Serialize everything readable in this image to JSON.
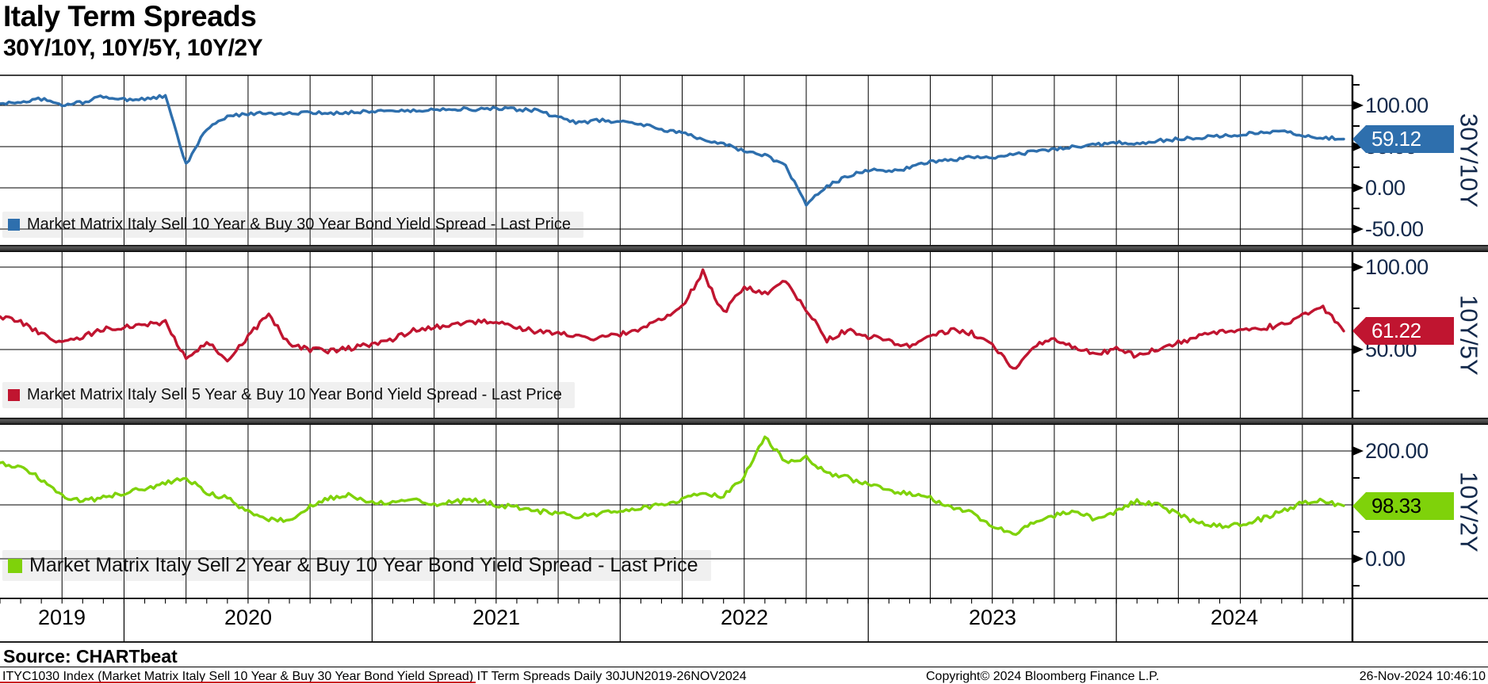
{
  "header": {
    "title": "Italy Term Spreads",
    "subtitle": "30Y/10Y, 10Y/5Y, 10Y/2Y"
  },
  "colors": {
    "blue": "#2e6fad",
    "red": "#c01530",
    "green": "#7fd20a",
    "grid": "#000000",
    "axis_text": "#13294b",
    "legend_bg": "#f0f0f0",
    "footnote_underline": "#c90016"
  },
  "x_axis": {
    "years": [
      "2019",
      "2020",
      "2021",
      "2022",
      "2023",
      "2024"
    ],
    "range_start": "30JUN2019",
    "range_end": "26NOV2024",
    "minor_ticks": "monthly",
    "gridlines": "quarterly"
  },
  "chart_data": [
    {
      "type": "line",
      "panel": "30Y/10Y",
      "series_name": "Market Matrix Italy Sell 10 Year & Buy 30 Year Bond Yield Spread - Last Price",
      "last_price": "59.12",
      "color": "#2e6fad",
      "ylim": [
        -70,
        135
      ],
      "yticks": [
        {
          "value": 100,
          "label": "100.00"
        },
        {
          "value": 50,
          "label": "50.00"
        },
        {
          "value": 0,
          "label": "0.00"
        },
        {
          "value": -50,
          "label": "-50.00"
        }
      ],
      "x_monthly": "Jun-2019 to Nov-2024",
      "values": [
        102,
        104,
        108,
        100,
        104,
        111,
        107,
        108,
        111,
        28,
        72,
        86,
        90,
        91,
        90,
        91,
        90,
        92,
        93,
        94,
        93,
        95,
        96,
        95,
        96,
        95,
        94,
        85,
        79,
        82,
        80,
        78,
        70,
        67,
        59,
        54,
        44,
        40,
        26,
        -20,
        2,
        14,
        22,
        20,
        24,
        32,
        34,
        37,
        36,
        40,
        44,
        47,
        50,
        52,
        55,
        54,
        57,
        59,
        61,
        63,
        65,
        67,
        69,
        64,
        61,
        59.12
      ]
    },
    {
      "type": "line",
      "panel": "10Y/5Y",
      "series_name": "Market Matrix Italy Sell 5 Year & Buy 10 Year Bond Yield Spread - Last Price",
      "last_price": "61.22",
      "color": "#c01530",
      "ylim": [
        5,
        110
      ],
      "yticks": [
        {
          "value": 100,
          "label": "100.00"
        },
        {
          "value": 50,
          "label": "50.00"
        }
      ],
      "x_monthly": "Jun-2019 to Nov-2024",
      "values": [
        70,
        67,
        59,
        54,
        58,
        62,
        64,
        65,
        67,
        44,
        55,
        42,
        58,
        71,
        53,
        50,
        49,
        51,
        53,
        56,
        62,
        64,
        65,
        67,
        66,
        63,
        61,
        60,
        58,
        57,
        59,
        62,
        68,
        76,
        97,
        72,
        88,
        84,
        91,
        74,
        56,
        62,
        58,
        55,
        52,
        58,
        62,
        60,
        54,
        38,
        52,
        57,
        51,
        47,
        50,
        46,
        50,
        54,
        58,
        60,
        62,
        63,
        65,
        70,
        76,
        61.22
      ]
    },
    {
      "type": "line",
      "panel": "10Y/2Y",
      "series_name": "Market Matrix Italy Sell 2 Year & Buy 10 Year Bond Yield Spread - Last Price",
      "last_price": "98.33",
      "color": "#7fd20a",
      "ylim": [
        -75,
        250
      ],
      "yticks": [
        {
          "value": 200,
          "label": "200.00"
        },
        {
          "value": 0,
          "label": "0.00"
        }
      ],
      "x_monthly": "Jun-2019 to Nov-2024",
      "values": [
        178,
        168,
        148,
        118,
        106,
        114,
        121,
        131,
        140,
        150,
        122,
        112,
        86,
        74,
        70,
        100,
        114,
        118,
        103,
        106,
        112,
        102,
        106,
        108,
        100,
        95,
        89,
        83,
        78,
        84,
        89,
        94,
        100,
        110,
        122,
        116,
        152,
        225,
        178,
        188,
        160,
        150,
        138,
        128,
        120,
        112,
        96,
        86,
        62,
        45,
        68,
        80,
        88,
        74,
        88,
        108,
        100,
        82,
        66,
        60,
        62,
        74,
        88,
        104,
        108,
        98.33
      ]
    }
  ],
  "footer": {
    "source": "Source: CHARTbeat",
    "footnote": "ITYC1030 Index (Market Matrix Italy Sell 10 Year & Buy 30 Year Bond Yield Spread) IT Term Spreads  Daily 30JUN2019-26NOV2024",
    "copyright": "Copyright© 2024 Bloomberg Finance L.P.",
    "datetime": "26-Nov-2024 10:46:10"
  }
}
